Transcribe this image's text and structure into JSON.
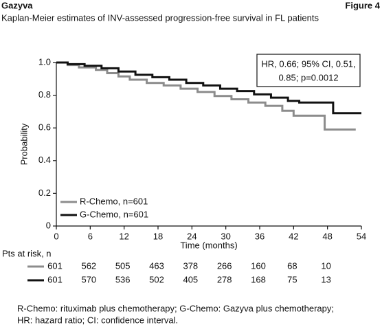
{
  "header": {
    "title": "Gazyva",
    "figure": "Figure 4"
  },
  "chart_data": {
    "type": "line",
    "step": true,
    "title": "Kaplan-Meier estimates of INV-assessed progression-free survival in FL patients",
    "x_label": "Time (months)",
    "y_label": "Probability",
    "xlim": [
      0,
      54
    ],
    "xticks": [
      0,
      6,
      12,
      18,
      24,
      30,
      36,
      42,
      48,
      54
    ],
    "ylim": [
      0,
      1
    ],
    "yticks": [
      0,
      0.2,
      0.4,
      0.6,
      0.8,
      {
        "value": 1,
        "label": "1.0"
      }
    ],
    "grid": false,
    "legend": "lower-left",
    "annotation": [
      "HR, 0.66; 95% CI, 0.51,",
      "0.85; p=0.0012"
    ],
    "series": [
      {
        "name": "R-Chemo, n=601",
        "color": "#8c8c8c",
        "x": [
          0,
          2,
          2,
          4,
          4,
          7,
          7,
          9,
          9,
          11,
          11,
          13,
          13,
          16,
          16,
          19,
          19,
          22,
          22,
          25,
          25,
          28,
          28,
          31,
          31,
          34,
          34,
          37,
          37,
          40,
          40,
          42,
          42,
          47.5,
          47.5,
          53
        ],
        "values": [
          1,
          1,
          0.985,
          0.985,
          0.97,
          0.97,
          0.955,
          0.955,
          0.935,
          0.935,
          0.915,
          0.915,
          0.895,
          0.895,
          0.875,
          0.875,
          0.86,
          0.86,
          0.84,
          0.84,
          0.82,
          0.82,
          0.795,
          0.795,
          0.775,
          0.775,
          0.755,
          0.755,
          0.735,
          0.735,
          0.705,
          0.705,
          0.675,
          0.675,
          0.59,
          0.59
        ]
      },
      {
        "name": "G-Chemo, n=601",
        "color": "#111111",
        "x": [
          0,
          2,
          2,
          5,
          5,
          8,
          8,
          11,
          11,
          14,
          14,
          17,
          17,
          20,
          20,
          23,
          23,
          26,
          26,
          29,
          29,
          32,
          32,
          35,
          35,
          38,
          38,
          41,
          41,
          43,
          43,
          49,
          49,
          54
        ],
        "values": [
          1,
          1,
          0.99,
          0.99,
          0.98,
          0.98,
          0.965,
          0.965,
          0.945,
          0.945,
          0.925,
          0.925,
          0.91,
          0.91,
          0.895,
          0.895,
          0.875,
          0.875,
          0.86,
          0.86,
          0.84,
          0.84,
          0.825,
          0.825,
          0.805,
          0.805,
          0.785,
          0.785,
          0.765,
          0.765,
          0.755,
          0.755,
          0.69,
          0.69
        ]
      }
    ],
    "at_risk": {
      "label": "Pts at risk, n",
      "rows": [
        [
          601,
          562,
          505,
          463,
          378,
          266,
          160,
          68,
          10
        ],
        [
          601,
          570,
          536,
          502,
          405,
          278,
          168,
          75,
          13
        ]
      ]
    }
  },
  "footnote": [
    "R-Chemo: rituximab plus chemotherapy; G-Chemo: Gazyva plus chemotherapy;",
    "HR: hazard ratio; CI: confidence interval."
  ]
}
